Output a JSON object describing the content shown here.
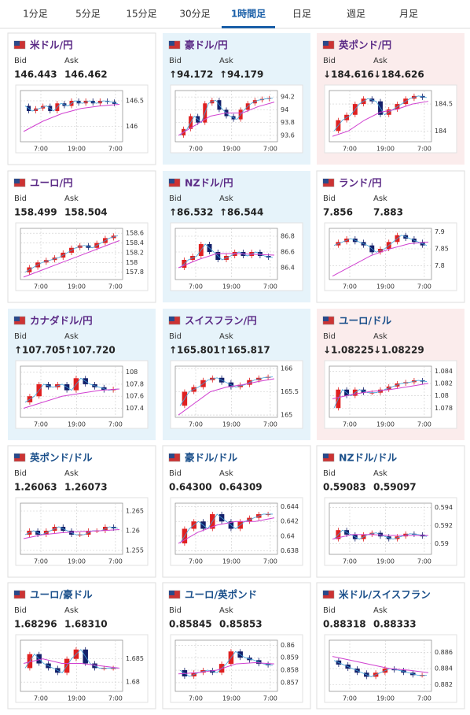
{
  "tabs": [
    "1分足",
    "5分足",
    "15分足",
    "30分足",
    "1時間足",
    "日足",
    "週足",
    "月足"
  ],
  "active_tab": 4,
  "bid_label": "Bid",
  "ask_label": "Ask",
  "time_labels": [
    "7:00",
    "19:00",
    "7:00"
  ],
  "cards": [
    {
      "pair": "米ドル/円",
      "tone": "none",
      "bid": "146.443",
      "ask": "146.462",
      "ylim": [
        145.7,
        146.7
      ],
      "yticks": [
        146,
        146.5
      ],
      "close": [
        146.4,
        146.3,
        146.35,
        146.4,
        146.3,
        146.45,
        146.4,
        146.5,
        146.45,
        146.5,
        146.45,
        146.5,
        146.48,
        146.44
      ],
      "ma": [
        145.9,
        146.1,
        146.25,
        146.35,
        146.4,
        146.43
      ]
    },
    {
      "pair": "豪ドル/円",
      "tone": "up",
      "bid": "↑94.172",
      "ask": "↑94.179",
      "ylim": [
        93.5,
        94.3
      ],
      "yticks": [
        93.6,
        93.8,
        94,
        94.2
      ],
      "close": [
        93.6,
        93.7,
        93.9,
        93.8,
        94.1,
        94.15,
        94.0,
        93.9,
        93.85,
        94.0,
        94.1,
        94.15,
        94.17,
        94.18
      ],
      "ma": [
        93.6,
        93.75,
        93.9,
        93.95,
        93.95,
        94.05,
        94.12
      ]
    },
    {
      "pair": "英ポンド/円",
      "tone": "down",
      "bid": "↓184.616",
      "ask": "↓184.626",
      "ylim": [
        183.8,
        184.75
      ],
      "yticks": [
        184,
        184.5
      ],
      "close": [
        184.0,
        184.2,
        184.3,
        184.5,
        184.6,
        184.55,
        184.3,
        184.4,
        184.5,
        184.6,
        184.65,
        184.62
      ],
      "ma": [
        183.9,
        184.0,
        184.2,
        184.35,
        184.4,
        184.5,
        184.55
      ]
    },
    {
      "pair": "ユーロ/円",
      "tone": "none",
      "bid": "158.499",
      "ask": "158.504",
      "ylim": [
        157.65,
        158.7
      ],
      "yticks": [
        157.8,
        158,
        158.2,
        158.4,
        158.6
      ],
      "close": [
        157.8,
        157.9,
        158.0,
        158.05,
        158.1,
        158.2,
        158.3,
        158.35,
        158.3,
        158.4,
        158.5,
        158.55
      ],
      "ma": [
        157.7,
        157.85,
        158.0,
        158.15,
        158.3,
        158.45
      ]
    },
    {
      "pair": "NZドル/円",
      "tone": "up",
      "bid": "↑86.532",
      "ask": "↑86.544",
      "ylim": [
        86.25,
        86.9
      ],
      "yticks": [
        86.4,
        86.6,
        86.8
      ],
      "close": [
        86.4,
        86.5,
        86.55,
        86.7,
        86.6,
        86.5,
        86.55,
        86.6,
        86.55,
        86.6,
        86.55,
        86.53
      ],
      "ma": [
        86.4,
        86.5,
        86.58,
        86.58,
        86.57,
        86.56
      ]
    },
    {
      "pair": "ランド/円",
      "tone": "none",
      "bid": "7.856",
      "ask": "7.883",
      "ylim": [
        7.76,
        7.91
      ],
      "yticks": [
        7.8,
        7.85,
        7.9
      ],
      "close": [
        7.86,
        7.87,
        7.88,
        7.87,
        7.86,
        7.84,
        7.85,
        7.87,
        7.89,
        7.88,
        7.87,
        7.86
      ],
      "ma": [
        7.77,
        7.8,
        7.83,
        7.85,
        7.865,
        7.87
      ]
    },
    {
      "pair": "カナダドル/円",
      "tone": "up",
      "bid": "↑107.705",
      "ask": "↑107.720",
      "ylim": [
        107.25,
        108.1
      ],
      "yticks": [
        107.4,
        107.6,
        107.8,
        108
      ],
      "close": [
        107.5,
        107.6,
        107.8,
        107.75,
        107.8,
        107.7,
        107.9,
        107.8,
        107.75,
        107.7,
        107.72
      ],
      "ma": [
        107.4,
        107.5,
        107.6,
        107.65,
        107.7,
        107.72
      ]
    },
    {
      "pair": "スイスフラン/円",
      "tone": "up",
      "bid": "↑165.801",
      "ask": "↑165.817",
      "ylim": [
        164.95,
        166.05
      ],
      "yticks": [
        165,
        165.5,
        166
      ],
      "close": [
        165.2,
        165.5,
        165.6,
        165.75,
        165.8,
        165.7,
        165.6,
        165.65,
        165.75,
        165.8,
        165.82
      ],
      "ma": [
        165.0,
        165.25,
        165.5,
        165.6,
        165.65,
        165.72,
        165.78
      ]
    },
    {
      "pair": "ユーロ/ドル",
      "tone": "down",
      "bid": "↓1.08225",
      "ask": "↓1.08229",
      "ylim": [
        1.0765,
        1.0848
      ],
      "yticks": [
        1.078,
        1.08,
        1.082,
        1.084
      ],
      "close": [
        1.078,
        1.081,
        1.08,
        1.081,
        1.0805,
        1.0805,
        1.081,
        1.0815,
        1.082,
        1.0822,
        1.0825,
        1.0823
      ],
      "ma": [
        1.0795,
        1.0802,
        1.0807,
        1.081,
        1.0815,
        1.082
      ]
    },
    {
      "pair": "英ポンド/ドル",
      "tone": "none",
      "bid": "1.26063",
      "ask": "1.26073",
      "ylim": [
        1.254,
        1.267
      ],
      "yticks": [
        1.255,
        1.26,
        1.265
      ],
      "close": [
        1.259,
        1.26,
        1.259,
        1.26,
        1.261,
        1.26,
        1.259,
        1.259,
        1.26,
        1.26,
        1.261,
        1.2606
      ],
      "ma": [
        1.258,
        1.259,
        1.2595,
        1.2598,
        1.26,
        1.2603
      ]
    },
    {
      "pair": "豪ドル/ドル",
      "tone": "none",
      "bid": "0.64300",
      "ask": "0.64309",
      "ylim": [
        0.6375,
        0.6445
      ],
      "yticks": [
        0.638,
        0.64,
        0.642,
        0.644
      ],
      "close": [
        0.639,
        0.641,
        0.642,
        0.641,
        0.643,
        0.642,
        0.641,
        0.642,
        0.6425,
        0.643,
        0.643
      ],
      "ma": [
        0.639,
        0.6405,
        0.6415,
        0.642,
        0.642,
        0.6425
      ]
    },
    {
      "pair": "NZドル/ドル",
      "tone": "none",
      "bid": "0.59083",
      "ask": "0.59097",
      "ylim": [
        0.5888,
        0.5945
      ],
      "yticks": [
        0.59,
        0.592,
        0.594
      ],
      "close": [
        0.5905,
        0.5915,
        0.591,
        0.5905,
        0.591,
        0.5912,
        0.5908,
        0.5905,
        0.5908,
        0.5911,
        0.591,
        0.5908
      ],
      "ma": [
        0.5905,
        0.591,
        0.591,
        0.5909,
        0.5909,
        0.5909
      ]
    },
    {
      "pair": "ユーロ/豪ドル",
      "tone": "none",
      "bid": "1.68296",
      "ask": "1.68310",
      "ylim": [
        1.678,
        1.689
      ],
      "yticks": [
        1.68,
        1.685
      ],
      "close": [
        1.683,
        1.686,
        1.684,
        1.683,
        1.682,
        1.685,
        1.687,
        1.684,
        1.683,
        1.683,
        1.683
      ],
      "ma": [
        1.684,
        1.685,
        1.684,
        1.684,
        1.6835,
        1.683
      ]
    },
    {
      "pair": "ユーロ/英ポンド",
      "tone": "none",
      "bid": "0.85845",
      "ask": "0.85853",
      "ylim": [
        0.8563,
        0.8604
      ],
      "yticks": [
        0.857,
        0.858,
        0.859,
        0.86
      ],
      "close": [
        0.858,
        0.8575,
        0.8578,
        0.858,
        0.8578,
        0.8585,
        0.8595,
        0.859,
        0.8588,
        0.8585,
        0.8584
      ],
      "ma": [
        0.8577,
        0.8578,
        0.858,
        0.8585,
        0.8586,
        0.8585
      ]
    },
    {
      "pair": "米ドル/スイスフラン",
      "tone": "none",
      "bid": "0.88318",
      "ask": "0.88333",
      "ylim": [
        0.8812,
        0.8875
      ],
      "yticks": [
        0.882,
        0.884,
        0.886
      ],
      "close": [
        0.885,
        0.8845,
        0.884,
        0.8835,
        0.883,
        0.8835,
        0.884,
        0.8838,
        0.8835,
        0.8832,
        0.8832
      ],
      "ma": [
        0.8855,
        0.885,
        0.8845,
        0.884,
        0.8838,
        0.8835
      ]
    }
  ]
}
